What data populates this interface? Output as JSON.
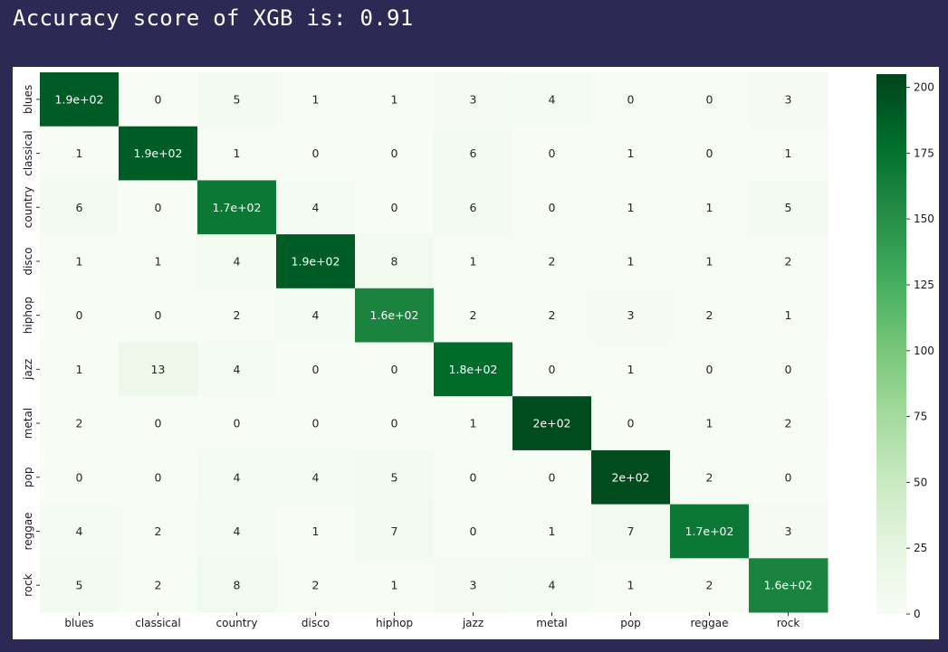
{
  "output": {
    "text": "Accuracy score of XGB is: 0.91"
  },
  "chart_data": {
    "type": "heatmap",
    "colormap": "Greens",
    "annotated": true,
    "rows": [
      "blues",
      "classical",
      "country",
      "disco",
      "hiphop",
      "jazz",
      "metal",
      "pop",
      "reggae",
      "rock"
    ],
    "columns": [
      "blues",
      "classical",
      "country",
      "disco",
      "hiphop",
      "jazz",
      "metal",
      "pop",
      "reggae",
      "rock"
    ],
    "values": [
      [
        190,
        0,
        5,
        1,
        1,
        3,
        4,
        0,
        0,
        3
      ],
      [
        1,
        190,
        1,
        0,
        0,
        6,
        0,
        1,
        0,
        1
      ],
      [
        6,
        0,
        170,
        4,
        0,
        6,
        0,
        1,
        1,
        5
      ],
      [
        1,
        1,
        4,
        190,
        8,
        1,
        2,
        1,
        1,
        2
      ],
      [
        0,
        0,
        2,
        4,
        160,
        2,
        2,
        3,
        2,
        1
      ],
      [
        1,
        13,
        4,
        0,
        0,
        180,
        0,
        1,
        0,
        0
      ],
      [
        2,
        0,
        0,
        0,
        0,
        1,
        200,
        0,
        1,
        2
      ],
      [
        0,
        0,
        4,
        4,
        5,
        0,
        0,
        200,
        2,
        0
      ],
      [
        4,
        2,
        4,
        1,
        7,
        0,
        1,
        7,
        170,
        3
      ],
      [
        5,
        2,
        8,
        2,
        1,
        3,
        4,
        1,
        2,
        160
      ]
    ],
    "annotations": [
      [
        "1.9e+02",
        "0",
        "5",
        "1",
        "1",
        "3",
        "4",
        "0",
        "0",
        "3"
      ],
      [
        "1",
        "1.9e+02",
        "1",
        "0",
        "0",
        "6",
        "0",
        "1",
        "0",
        "1"
      ],
      [
        "6",
        "0",
        "1.7e+02",
        "4",
        "0",
        "6",
        "0",
        "1",
        "1",
        "5"
      ],
      [
        "1",
        "1",
        "4",
        "1.9e+02",
        "8",
        "1",
        "2",
        "1",
        "1",
        "2"
      ],
      [
        "0",
        "0",
        "2",
        "4",
        "1.6e+02",
        "2",
        "2",
        "3",
        "2",
        "1"
      ],
      [
        "1",
        "13",
        "4",
        "0",
        "0",
        "1.8e+02",
        "0",
        "1",
        "0",
        "0"
      ],
      [
        "2",
        "0",
        "0",
        "0",
        "0",
        "1",
        "2e+02",
        "0",
        "1",
        "2"
      ],
      [
        "0",
        "0",
        "4",
        "4",
        "5",
        "0",
        "0",
        "2e+02",
        "2",
        "0"
      ],
      [
        "4",
        "2",
        "4",
        "1",
        "7",
        "0",
        "1",
        "7",
        "1.7e+02",
        "3"
      ],
      [
        "5",
        "2",
        "8",
        "2",
        "1",
        "3",
        "4",
        "1",
        "2",
        "1.6e+02"
      ]
    ],
    "vmin": 0,
    "vmax": 205,
    "colorbar_ticks": [
      0,
      25,
      50,
      75,
      100,
      125,
      150,
      175,
      200
    ]
  }
}
